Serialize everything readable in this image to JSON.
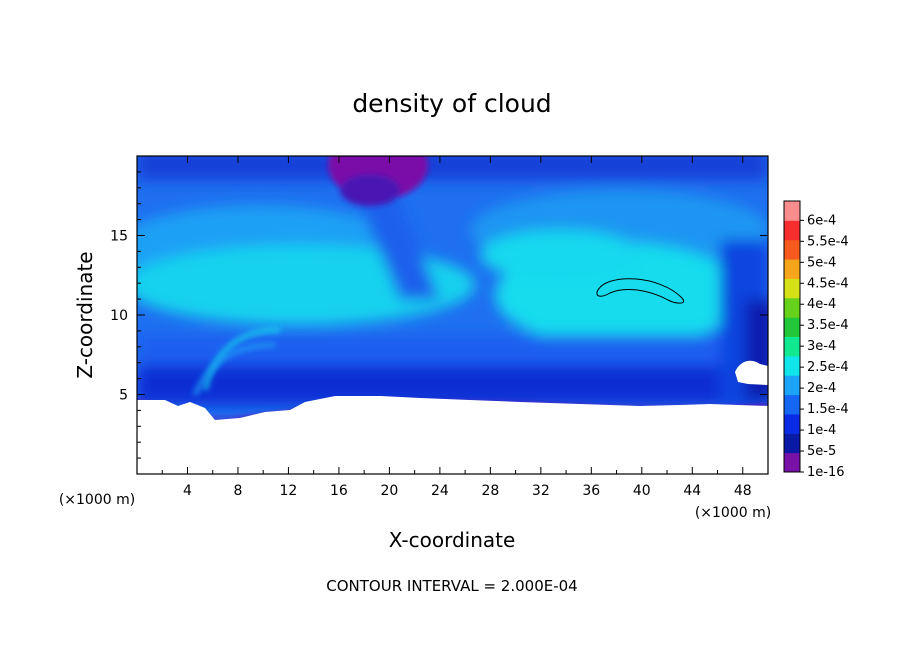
{
  "chart_data": {
    "type": "heatmap",
    "title": "density of cloud",
    "xlabel": "X-coordinate",
    "ylabel": "Z-coordinate",
    "x_unit": "(×1000 m)",
    "y_unit": "(×1000 m)",
    "xlim": [
      0,
      50
    ],
    "ylim": [
      0,
      20
    ],
    "x_ticks": [
      "4",
      "8",
      "12",
      "16",
      "20",
      "24",
      "28",
      "32",
      "36",
      "40",
      "44",
      "48"
    ],
    "x_tick_values": [
      4,
      8,
      12,
      16,
      20,
      24,
      28,
      32,
      36,
      40,
      44,
      48
    ],
    "y_ticks": [
      "5",
      "10",
      "15"
    ],
    "y_tick_values": [
      5,
      10,
      15
    ],
    "note": "CONTOUR INTERVAL = 2.000E-04",
    "colorbar": {
      "labels": [
        "1e-16",
        "5e-5",
        "1e-4",
        "1.5e-4",
        "2e-4",
        "2.5e-4",
        "3e-4",
        "3.5e-4",
        "4e-4",
        "4.5e-4",
        "5e-4",
        "5.5e-4",
        "6e-4"
      ],
      "values": [
        1e-16,
        5e-05,
        0.0001,
        0.00015,
        0.0002,
        0.00025,
        0.0003,
        0.00035,
        0.0004,
        0.00045,
        0.0005,
        0.00055,
        0.0006
      ],
      "colors": [
        "#7a11a8",
        "#0a1aa6",
        "#0a2be6",
        "#1367f2",
        "#1ba3f6",
        "#10e6ea",
        "#10e98f",
        "#22c83a",
        "#66d21c",
        "#d6e019",
        "#f5a51a",
        "#f75a1c",
        "#f72e2e",
        "#f98c8c"
      ]
    }
  }
}
